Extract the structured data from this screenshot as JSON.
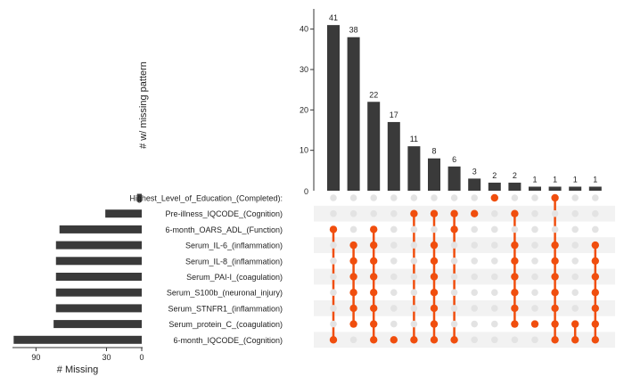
{
  "chart_data": {
    "type": "upset",
    "y_axis_label": "# w/ missing pattern",
    "set_axis_label": "# Missing",
    "set_axis_ticks": [
      90,
      30,
      0
    ],
    "intersection_ylim": [
      0,
      45
    ],
    "intersection_yticks": [
      10,
      20,
      30,
      40
    ],
    "bottom_tick_partial": "0",
    "colors": {
      "bar": "#3a3a3a",
      "dot_active": "#f04e0e",
      "dot_inactive": "#e3e3e3",
      "row_stripe": "#f2f2f2"
    },
    "variables": [
      "Highest_Level_of_Education_(Completed):",
      "Pre-illness_IQCODE_(Cognition)",
      "6-month_OARS_ADL_(Function)",
      "Serum_IL-6_(inflammation)",
      "Serum_IL-8_(inflammation)",
      "Serum_PAI-I_(coagulation)",
      "Serum_S100b_(neuronal_injury)",
      "Serum_STNFR1_(inflammation)",
      "Serum_protein_C_(coagulation)",
      "6-month_IQCODE_(Cognition)"
    ],
    "set_sizes": [
      4,
      31,
      70,
      73,
      73,
      73,
      73,
      73,
      75,
      109
    ],
    "intersections": [
      {
        "count": 41,
        "sets": [
          2,
          9
        ]
      },
      {
        "count": 38,
        "sets": [
          3,
          4,
          5,
          6,
          7,
          8
        ]
      },
      {
        "count": 22,
        "sets": [
          2,
          3,
          4,
          5,
          6,
          7,
          8,
          9
        ]
      },
      {
        "count": 17,
        "sets": [
          9
        ]
      },
      {
        "count": 11,
        "sets": [
          1,
          9
        ]
      },
      {
        "count": 8,
        "sets": [
          1,
          3,
          4,
          5,
          6,
          7,
          8,
          9
        ]
      },
      {
        "count": 6,
        "sets": [
          1,
          2,
          9
        ]
      },
      {
        "count": 3,
        "sets": [
          1
        ]
      },
      {
        "count": 2,
        "sets": [
          0
        ]
      },
      {
        "count": 2,
        "sets": [
          1,
          3,
          4,
          5,
          6,
          7,
          8
        ]
      },
      {
        "count": 1,
        "sets": [
          8
        ]
      },
      {
        "count": 1,
        "sets": [
          0,
          3,
          4,
          5,
          6,
          7,
          8,
          9
        ]
      },
      {
        "count": 1,
        "sets": [
          8,
          9
        ]
      },
      {
        "count": 1,
        "sets": [
          3,
          4,
          5,
          6,
          7,
          8,
          9
        ]
      }
    ]
  }
}
